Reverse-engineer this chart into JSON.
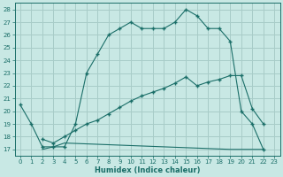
{
  "xlabel": "Humidex (Indice chaleur)",
  "bg_color": "#c8e8e4",
  "grid_color": "#a8ccc8",
  "line_color": "#1a6e68",
  "xlim": [
    -0.5,
    23.5
  ],
  "ylim": [
    16.5,
    28.5
  ],
  "yticks": [
    17,
    18,
    19,
    20,
    21,
    22,
    23,
    24,
    25,
    26,
    27,
    28
  ],
  "xticks": [
    0,
    1,
    2,
    3,
    4,
    5,
    6,
    7,
    8,
    9,
    10,
    11,
    12,
    13,
    14,
    15,
    16,
    17,
    18,
    19,
    20,
    21,
    22,
    23
  ],
  "line1_x": [
    0,
    1,
    2,
    3,
    4,
    5,
    6,
    7,
    8,
    9,
    10,
    11,
    12,
    13,
    14,
    15,
    16,
    17,
    18,
    19,
    20,
    21,
    22
  ],
  "line1_y": [
    20.5,
    19.0,
    17.2,
    17.2,
    17.2,
    19.0,
    23.0,
    24.5,
    26.0,
    26.5,
    27.0,
    26.5,
    26.5,
    26.5,
    27.0,
    28.0,
    27.5,
    26.5,
    26.5,
    25.5,
    20.0,
    19.0,
    17.0
  ],
  "line2_x": [
    2,
    3,
    4,
    19,
    20,
    22
  ],
  "line2_y": [
    17.0,
    17.2,
    17.5,
    17.0,
    17.0,
    17.0
  ],
  "line3_x": [
    2,
    3,
    4,
    5,
    6,
    7,
    8,
    9,
    10,
    11,
    12,
    13,
    14,
    15,
    16,
    17,
    18,
    19,
    20,
    21,
    22
  ],
  "line3_y": [
    17.8,
    17.5,
    18.0,
    18.5,
    19.0,
    19.3,
    19.8,
    20.3,
    20.8,
    21.2,
    21.5,
    21.8,
    22.2,
    22.7,
    22.0,
    22.3,
    22.5,
    22.8,
    22.8,
    20.2,
    19.0
  ]
}
